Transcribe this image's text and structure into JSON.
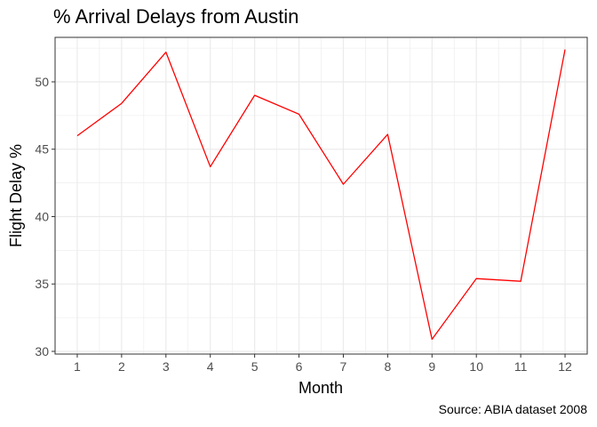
{
  "chart_data": {
    "type": "line",
    "title": "% Arrival Delays from Austin",
    "xlabel": "Month",
    "ylabel": "Flight Delay %",
    "caption": "Source: ABIA dataset 2008",
    "x": [
      1,
      2,
      3,
      4,
      5,
      6,
      7,
      8,
      9,
      10,
      11,
      12
    ],
    "xlim": [
      0.5,
      12.5
    ],
    "ylim": [
      29.8,
      53.3
    ],
    "x_ticks": [
      1,
      2,
      3,
      4,
      5,
      6,
      7,
      8,
      9,
      10,
      11,
      12
    ],
    "y_ticks": [
      30,
      35,
      40,
      45,
      50
    ],
    "grid": true,
    "series": [
      {
        "color": "#ff0000",
        "values": [
          46.0,
          48.4,
          52.2,
          43.7,
          49.0,
          47.6,
          42.4,
          46.1,
          30.9,
          35.4,
          35.2,
          52.4
        ]
      }
    ]
  }
}
